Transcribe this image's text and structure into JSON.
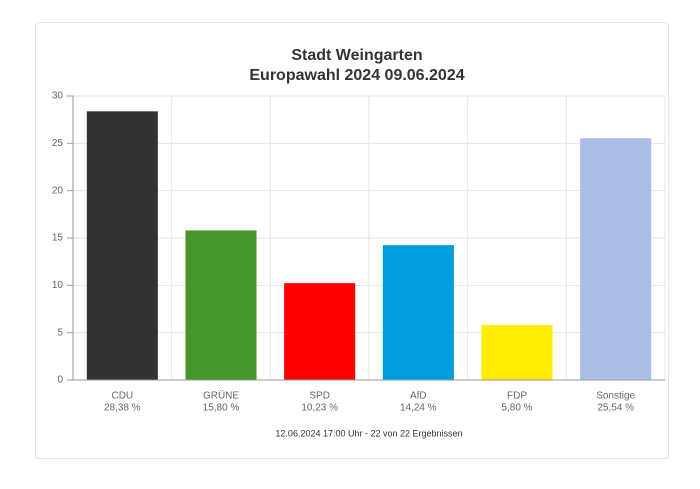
{
  "chart_data": {
    "type": "bar",
    "title": "Stadt Weingarten",
    "subtitle": "Europawahl 2024 09.06.2024",
    "categories": [
      "CDU",
      "GRÜNE",
      "SPD",
      "AfD",
      "FDP",
      "Sonstige"
    ],
    "values": [
      28.38,
      15.8,
      10.23,
      14.24,
      5.8,
      25.54
    ],
    "value_labels": [
      "28,38 %",
      "15,80 %",
      "10,23 %",
      "14,24 %",
      "5,80 %",
      "25,54 %"
    ],
    "colors": [
      "#333333",
      "#46962b",
      "#ff0000",
      "#009ee0",
      "#ffed00",
      "#aabde6"
    ],
    "ylim": [
      0,
      30
    ],
    "yticks": [
      0,
      5,
      10,
      15,
      20,
      25,
      30
    ],
    "grid": true,
    "footnote": "12.06.2024 17:00 Uhr - 22 von 22 Ergebnissen"
  }
}
